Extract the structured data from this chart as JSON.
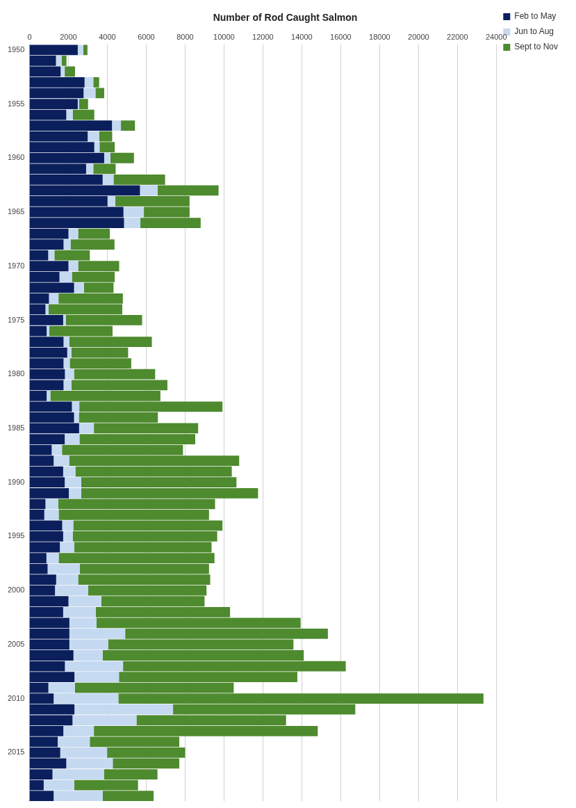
{
  "chart_data": {
    "type": "bar",
    "title": "Number of Rod Caught Salmon",
    "orientation": "horizontal",
    "stacked": true,
    "grid": "x",
    "legend": "right",
    "categories": [
      "1950",
      null,
      null,
      null,
      null,
      "1955",
      null,
      null,
      null,
      null,
      "1960",
      null,
      null,
      null,
      null,
      "1965",
      null,
      null,
      null,
      null,
      "1970",
      null,
      null,
      null,
      null,
      "1975",
      null,
      null,
      null,
      null,
      "1980",
      null,
      null,
      null,
      null,
      "1985",
      null,
      null,
      null,
      null,
      "1990",
      null,
      null,
      null,
      null,
      "1995",
      null,
      null,
      null,
      null,
      "2000",
      null,
      null,
      null,
      null,
      "2005",
      null,
      null,
      null,
      null,
      "2010",
      null,
      null,
      null,
      null,
      "2015",
      null,
      null,
      null,
      null
    ],
    "xlim": [
      0,
      24000
    ],
    "xticks": [
      0,
      2000,
      4000,
      6000,
      8000,
      10000,
      12000,
      14000,
      16000,
      18000,
      20000,
      22000,
      24000
    ],
    "series": [
      {
        "name": "Feb to May",
        "color": "#0a1f5c",
        "values": [
          2480,
          1360,
          1600,
          2830,
          2780,
          2480,
          1890,
          4240,
          2990,
          3330,
          3840,
          2910,
          3760,
          5680,
          4010,
          4830,
          4860,
          2000,
          1750,
          960,
          2000,
          1540,
          2290,
          1000,
          820,
          1730,
          880,
          1750,
          1940,
          1750,
          1820,
          1750,
          880,
          2180,
          2290,
          2550,
          1810,
          1140,
          1240,
          1730,
          1810,
          2020,
          820,
          760,
          1680,
          1730,
          1560,
          870,
          930,
          1370,
          1310,
          2000,
          1730,
          2050,
          2050,
          2050,
          2260,
          1820,
          2310,
          970,
          1240,
          2310,
          2210,
          1740,
          1450,
          1580,
          1890,
          1180,
          730,
          1240
        ]
      },
      {
        "name": "Jun to Aug",
        "color": "#c5d9f1",
        "values": [
          290,
          290,
          210,
          450,
          610,
          70,
          330,
          460,
          590,
          270,
          320,
          370,
          560,
          910,
          400,
          1050,
          840,
          500,
          360,
          320,
          500,
          640,
          510,
          490,
          160,
          130,
          130,
          300,
          210,
          320,
          470,
          410,
          190,
          380,
          250,
          760,
          760,
          530,
          800,
          630,
          850,
          640,
          660,
          740,
          570,
          490,
          740,
          630,
          1660,
          1130,
          1710,
          1690,
          1680,
          1390,
          2870,
          1990,
          1500,
          2990,
          2290,
          1370,
          3330,
          5070,
          3290,
          1570,
          1650,
          2410,
          2390,
          2650,
          1570,
          2520
        ]
      },
      {
        "name": "Sept to Nov",
        "color": "#4e8a2e",
        "values": [
          210,
          250,
          530,
          300,
          450,
          460,
          1110,
          720,
          670,
          780,
          1210,
          1150,
          2650,
          3130,
          3820,
          2350,
          3100,
          1630,
          2260,
          1820,
          2110,
          2200,
          1520,
          3310,
          3790,
          3930,
          3260,
          4240,
          2920,
          3160,
          4170,
          4930,
          5660,
          7360,
          4060,
          5360,
          5950,
          6220,
          8740,
          8040,
          7980,
          9090,
          8060,
          7730,
          7670,
          7430,
          7060,
          8010,
          6640,
          6790,
          6080,
          5310,
          6900,
          10500,
          10420,
          9530,
          10340,
          11450,
          9170,
          8160,
          18770,
          9370,
          7690,
          11510,
          4600,
          4010,
          3420,
          2750,
          3280,
          2620
        ]
      }
    ]
  }
}
